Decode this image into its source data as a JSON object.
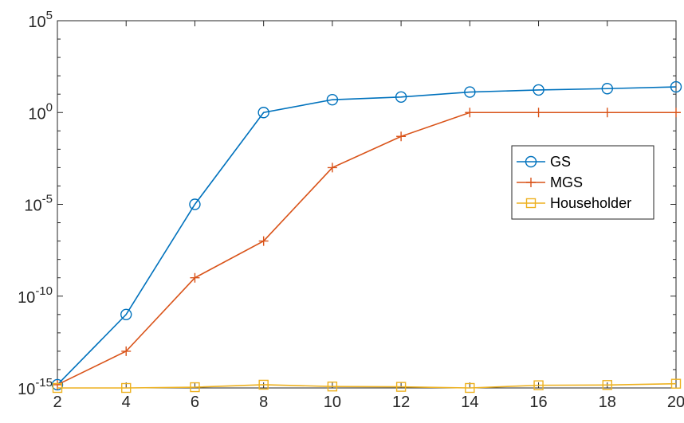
{
  "chart_data": {
    "type": "line",
    "title": "",
    "xlabel": "",
    "ylabel": "",
    "x": [
      2,
      4,
      6,
      8,
      10,
      12,
      14,
      16,
      18,
      20
    ],
    "xlim": [
      2,
      20
    ],
    "ylim": [
      1e-15,
      100000.0
    ],
    "yscale": "log",
    "x_ticks": [
      "2",
      "4",
      "6",
      "8",
      "10",
      "12",
      "14",
      "16",
      "18",
      "20"
    ],
    "y_ticks": [
      {
        "base": "10",
        "exp": "-15",
        "value": 1e-15
      },
      {
        "base": "10",
        "exp": "-10",
        "value": 1e-10
      },
      {
        "base": "10",
        "exp": "-5",
        "value": 1e-05
      },
      {
        "base": "10",
        "exp": "0",
        "value": 1
      },
      {
        "base": "10",
        "exp": "5",
        "value": 100000.0
      }
    ],
    "grid": false,
    "legend_position": "right",
    "series": [
      {
        "name": "GS",
        "color": "#0072BD",
        "marker": "circle",
        "values": [
          1.5e-15,
          1e-11,
          1e-05,
          1,
          5,
          7,
          13,
          17,
          20,
          25
        ]
      },
      {
        "name": "MGS",
        "color": "#D95319",
        "marker": "plus",
        "values": [
          1.5e-15,
          1e-13,
          1e-09,
          1e-07,
          0.001,
          0.05,
          1,
          1,
          1,
          1
        ]
      },
      {
        "name": "Householder",
        "color": "#EDB120",
        "marker": "square",
        "values": [
          3e-16,
          9e-16,
          1.1e-15,
          1.5e-15,
          1.2e-15,
          1.15e-15,
          1e-15,
          1.4e-15,
          1.45e-15,
          1.7e-15
        ]
      }
    ]
  }
}
